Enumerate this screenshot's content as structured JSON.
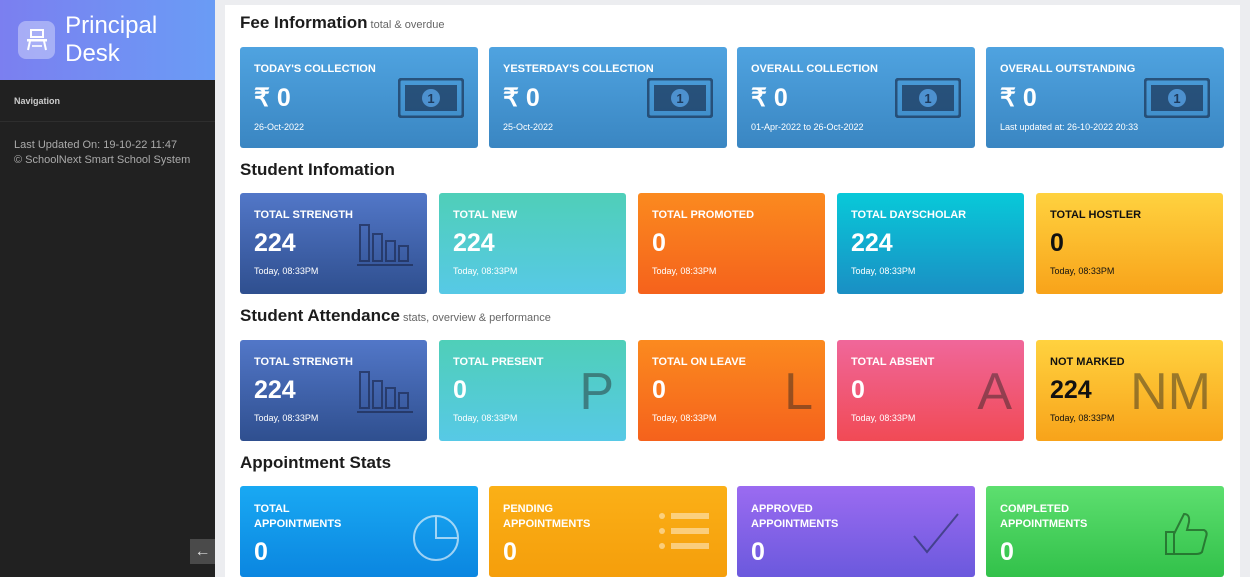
{
  "sidebar": {
    "brand_title": "Principal Desk",
    "nav_heading": "Navigation",
    "last_updated": "Last Updated On: 19-10-22 11:47",
    "copyright": "© SchoolNext Smart School System",
    "collapse_icon": "arrow-left-icon"
  },
  "fee": {
    "title": "Fee Information",
    "subtitle": "total & overdue",
    "cards": [
      {
        "label": "TODAY'S COLLECTION",
        "value": "₹ 0",
        "note": "26-Oct-2022"
      },
      {
        "label": "YESTERDAY'S COLLECTION",
        "value": "₹ 0",
        "note": "25-Oct-2022"
      },
      {
        "label": "OVERALL COLLECTION",
        "value": "₹ 0",
        "note": "01-Apr-2022 to 26-Oct-2022"
      },
      {
        "label": "OVERALL OUTSTANDING",
        "value": "₹ 0",
        "note": "Last updated at: 26-10-2022 20:33"
      }
    ]
  },
  "students": {
    "title": "Student Infomation",
    "cards": [
      {
        "label": "TOTAL STRENGTH",
        "value": "224",
        "note": "Today, 08:33PM"
      },
      {
        "label": "TOTAL NEW",
        "value": "224",
        "note": "Today, 08:33PM"
      },
      {
        "label": "TOTAL PROMOTED",
        "value": "0",
        "note": "Today, 08:33PM"
      },
      {
        "label": "TOTAL DAYSCHOLAR",
        "value": "224",
        "note": "Today, 08:33PM"
      },
      {
        "label": "TOTAL HOSTLER",
        "value": "0",
        "note": "Today, 08:33PM"
      }
    ]
  },
  "attendance": {
    "title": "Student Attendance",
    "subtitle": "stats, overview & performance",
    "cards": [
      {
        "label": "TOTAL STRENGTH",
        "value": "224",
        "note": "Today, 08:33PM",
        "letter": ""
      },
      {
        "label": "TOTAL PRESENT",
        "value": "0",
        "note": "Today, 08:33PM",
        "letter": "P"
      },
      {
        "label": "TOTAL ON LEAVE",
        "value": "0",
        "note": "Today, 08:33PM",
        "letter": "L"
      },
      {
        "label": "TOTAL ABSENT",
        "value": "0",
        "note": "Today, 08:33PM",
        "letter": "A"
      },
      {
        "label": "NOT MARKED",
        "value": "224",
        "note": "Today, 08:33PM",
        "letter": "NM"
      }
    ]
  },
  "appointments": {
    "title": "Appointment Stats",
    "cards": [
      {
        "label1": "TOTAL",
        "label2": "APPOINTMENTS",
        "value": "0"
      },
      {
        "label1": "PENDING",
        "label2": "APPOINTMENTS",
        "value": "0"
      },
      {
        "label1": "APPROVED",
        "label2": "APPOINTMENTS",
        "value": "0"
      },
      {
        "label1": "COMPLETED",
        "label2": "APPOINTMENTS",
        "value": "0"
      }
    ]
  }
}
